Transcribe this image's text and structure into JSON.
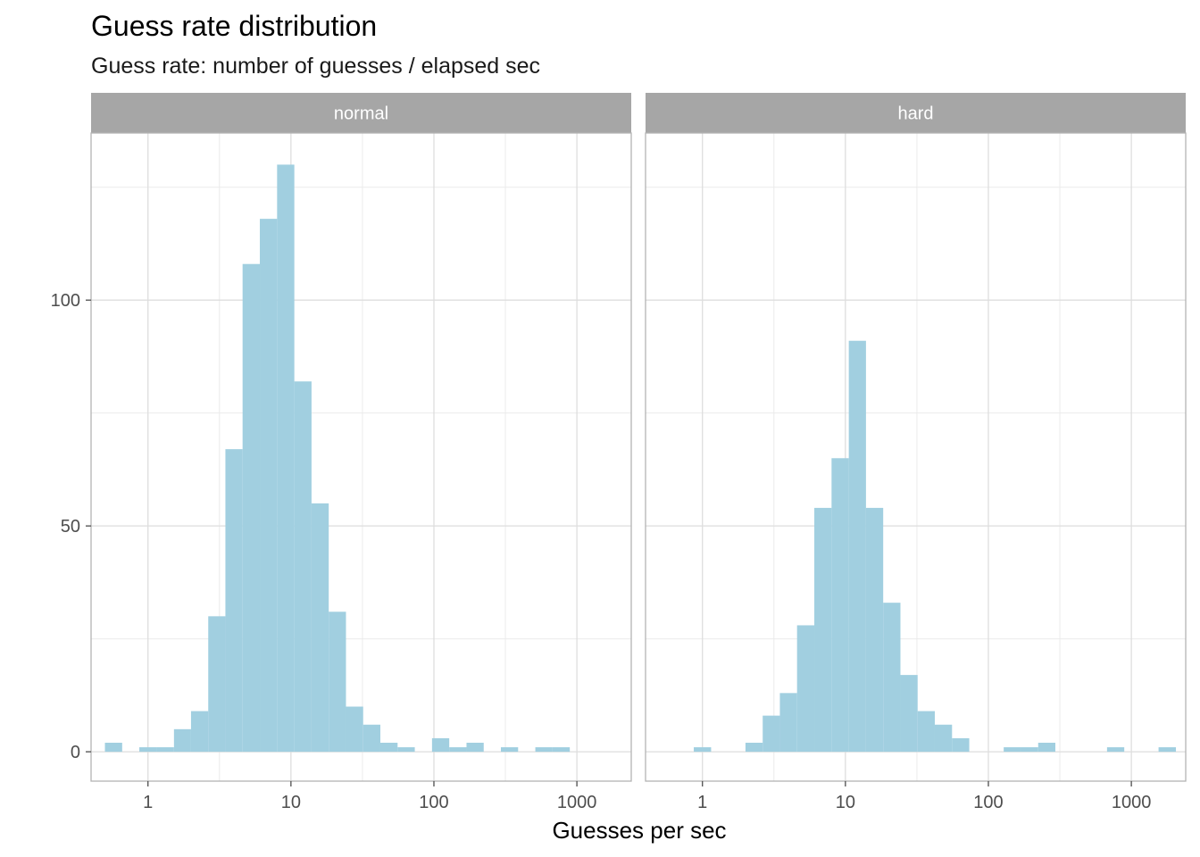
{
  "chart_data": {
    "type": "bar",
    "title": "Guess rate distribution",
    "subtitle": "Guess rate: number of guesses / elapsed sec",
    "xlabel": "Guesses per sec",
    "ylabel": "",
    "x_scale": "log10",
    "x_ticks": [
      1,
      10,
      100,
      1000
    ],
    "x_tick_labels": [
      "1",
      "10",
      "100",
      "1000"
    ],
    "y_ticks": [
      0,
      50,
      100
    ],
    "y_tick_labels": [
      "0",
      "50",
      "100"
    ],
    "ylim": [
      -6.5,
      137
    ],
    "xlim": [
      0.4,
      2400
    ],
    "grid": true,
    "bar_color": "#a1cfe0",
    "strip_color": "#a6a6a6",
    "panels": [
      {
        "name": "normal",
        "bins": [
          {
            "x0": 0.5,
            "x1": 0.66,
            "count": 2
          },
          {
            "x0": 0.87,
            "x1": 1.15,
            "count": 1
          },
          {
            "x0": 1.15,
            "x1": 1.52,
            "count": 1
          },
          {
            "x0": 1.52,
            "x1": 2.0,
            "count": 5
          },
          {
            "x0": 2.0,
            "x1": 2.64,
            "count": 9
          },
          {
            "x0": 2.64,
            "x1": 3.48,
            "count": 30
          },
          {
            "x0": 3.48,
            "x1": 4.59,
            "count": 67
          },
          {
            "x0": 4.59,
            "x1": 6.06,
            "count": 108
          },
          {
            "x0": 6.06,
            "x1": 8.0,
            "count": 118
          },
          {
            "x0": 8.0,
            "x1": 10.56,
            "count": 130
          },
          {
            "x0": 10.56,
            "x1": 13.93,
            "count": 82
          },
          {
            "x0": 13.93,
            "x1": 18.38,
            "count": 55
          },
          {
            "x0": 18.38,
            "x1": 24.26,
            "count": 31
          },
          {
            "x0": 24.26,
            "x1": 32.0,
            "count": 10
          },
          {
            "x0": 32.0,
            "x1": 42.2,
            "count": 6
          },
          {
            "x0": 42.2,
            "x1": 55.7,
            "count": 2
          },
          {
            "x0": 55.7,
            "x1": 73.5,
            "count": 1
          },
          {
            "x0": 97.0,
            "x1": 128.0,
            "count": 3
          },
          {
            "x0": 128.0,
            "x1": 169.0,
            "count": 1
          },
          {
            "x0": 169.0,
            "x1": 223.0,
            "count": 2
          },
          {
            "x0": 294.0,
            "x1": 388.0,
            "count": 1
          },
          {
            "x0": 512.0,
            "x1": 676.0,
            "count": 1
          },
          {
            "x0": 676.0,
            "x1": 892.0,
            "count": 1
          }
        ]
      },
      {
        "name": "hard",
        "bins": [
          {
            "x0": 0.87,
            "x1": 1.15,
            "count": 1
          },
          {
            "x0": 2.0,
            "x1": 2.64,
            "count": 2
          },
          {
            "x0": 2.64,
            "x1": 3.48,
            "count": 8
          },
          {
            "x0": 3.48,
            "x1": 4.59,
            "count": 13
          },
          {
            "x0": 4.59,
            "x1": 6.06,
            "count": 28
          },
          {
            "x0": 6.06,
            "x1": 8.0,
            "count": 54
          },
          {
            "x0": 8.0,
            "x1": 10.56,
            "count": 65
          },
          {
            "x0": 10.56,
            "x1": 13.93,
            "count": 91
          },
          {
            "x0": 13.93,
            "x1": 18.38,
            "count": 54
          },
          {
            "x0": 18.38,
            "x1": 24.26,
            "count": 33
          },
          {
            "x0": 24.26,
            "x1": 32.0,
            "count": 17
          },
          {
            "x0": 32.0,
            "x1": 42.2,
            "count": 9
          },
          {
            "x0": 42.2,
            "x1": 55.7,
            "count": 6
          },
          {
            "x0": 55.7,
            "x1": 73.5,
            "count": 3
          },
          {
            "x0": 128.0,
            "x1": 169.0,
            "count": 1
          },
          {
            "x0": 169.0,
            "x1": 223.0,
            "count": 1
          },
          {
            "x0": 223.0,
            "x1": 294.0,
            "count": 2
          },
          {
            "x0": 676.0,
            "x1": 892.0,
            "count": 1
          },
          {
            "x0": 1550.0,
            "x1": 2050.0,
            "count": 1
          }
        ]
      }
    ]
  }
}
